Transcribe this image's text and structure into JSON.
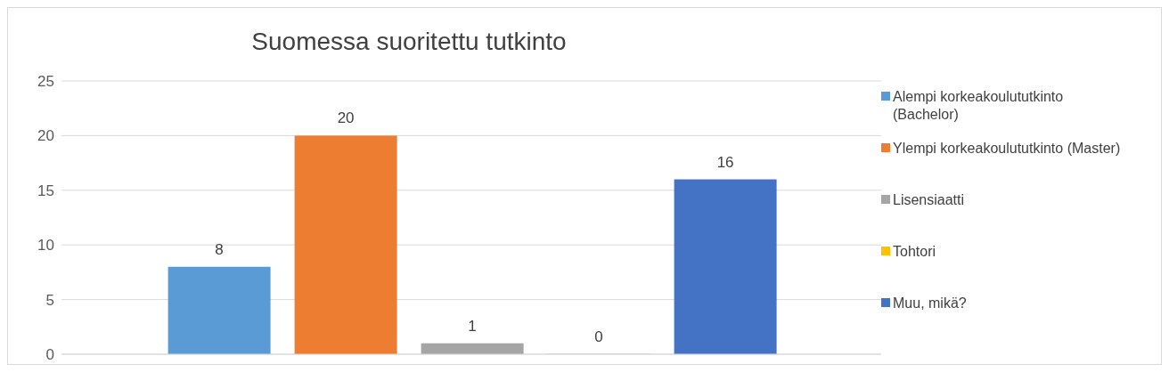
{
  "chart_data": {
    "type": "bar",
    "title": "Suomessa suoritettu tutkinto",
    "categories": [
      null
    ],
    "series": [
      {
        "name": "Alempi korkeakoulututkinto (Bachelor)",
        "color": "#5b9bd5",
        "values": [
          8
        ]
      },
      {
        "name": "Ylempi korkeakoulututkinto (Master)",
        "color": "#ed7d31",
        "values": [
          20
        ]
      },
      {
        "name": "Lisensiaatti",
        "color": "#a5a5a5",
        "values": [
          1
        ]
      },
      {
        "name": "Tohtori",
        "color": "#ffc000",
        "values": [
          0
        ]
      },
      {
        "name": "Muu, mikä?",
        "color": "#4472c4",
        "values": [
          16
        ]
      }
    ],
    "ylim": [
      0,
      25
    ],
    "yticks": [
      0,
      5,
      10,
      15,
      20,
      25
    ],
    "grid": "y",
    "legend": "right",
    "data_labels": true,
    "tick_labels": "y"
  }
}
